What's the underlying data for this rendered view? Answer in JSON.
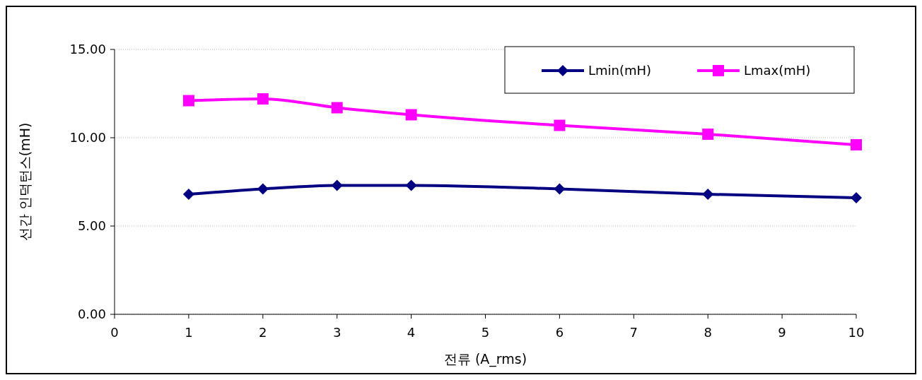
{
  "chart_data": {
    "type": "line",
    "xlabel": "전류 (A_rms)",
    "ylabel": "선간 인덕턴스(mH)",
    "xlim": [
      0,
      10
    ],
    "xticks": [
      0,
      1,
      2,
      3,
      4,
      5,
      6,
      7,
      8,
      9,
      10
    ],
    "ylim": [
      0,
      15
    ],
    "yticks": [
      {
        "value": 0,
        "label": "0.00"
      },
      {
        "value": 5,
        "label": "5.00"
      },
      {
        "value": 10,
        "label": "10.00"
      },
      {
        "value": 15,
        "label": "15.00"
      }
    ],
    "x": [
      1,
      2,
      3,
      4,
      6,
      8,
      10
    ],
    "series": [
      {
        "name": "Lmin(mH)",
        "color": "#000080",
        "marker": "diamond",
        "values": [
          6.8,
          7.1,
          7.3,
          7.3,
          7.1,
          6.8,
          6.6
        ]
      },
      {
        "name": "Lmax(mH)",
        "color": "#ff00ff",
        "marker": "square",
        "values": [
          12.1,
          12.2,
          11.7,
          11.3,
          10.7,
          10.2,
          9.6
        ]
      }
    ],
    "grid": "y",
    "legend": "top right",
    "line_style": "solid"
  }
}
